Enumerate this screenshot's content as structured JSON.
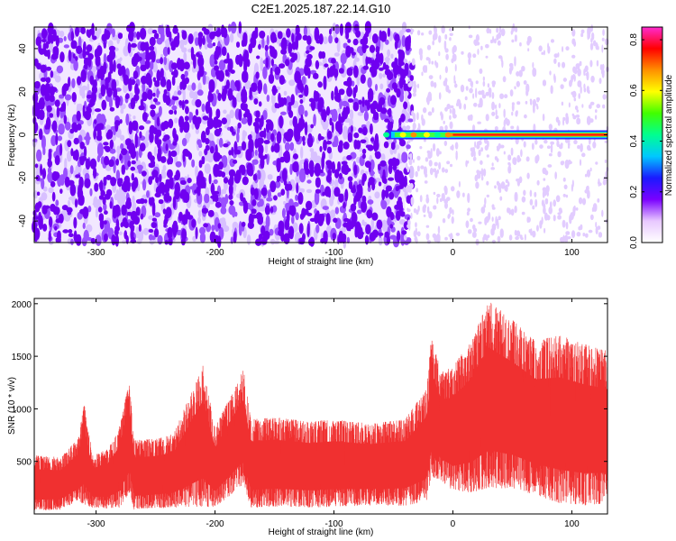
{
  "title": "C2E1.2025.187.22.14.G10",
  "chart_data": [
    {
      "type": "heatmap",
      "xlabel": "Height of straight line (km)",
      "ylabel": "Frequency (Hz)",
      "xlim": [
        -352,
        130
      ],
      "ylim": [
        -50,
        50
      ],
      "xticks": [
        -300,
        -200,
        -100,
        0,
        100
      ],
      "yticks": [
        -40,
        -20,
        0,
        20,
        40
      ],
      "colorbar": {
        "label": "Normalized spectral amplitude",
        "range": [
          0,
          0.85
        ],
        "ticks": [
          0.0,
          0.2,
          0.4,
          0.6,
          0.8
        ],
        "colors": [
          "#ffffff",
          "#e8c8ff",
          "#7a00ff",
          "#1a1aff",
          "#00c8ff",
          "#00ff90",
          "#40ff00",
          "#ffff00",
          "#ff9000",
          "#ff0000",
          "#ff2ad0"
        ]
      },
      "features": [
        {
          "name": "Speckled noise field",
          "x_range": [
            -352,
            -40
          ],
          "y_range": [
            -50,
            50
          ],
          "amplitude": [
            0.02,
            0.12
          ]
        },
        {
          "name": "Sparse noise field",
          "x_range": [
            -40,
            130
          ],
          "y_range": [
            -50,
            50
          ],
          "amplitude": [
            0.0,
            0.06
          ]
        },
        {
          "name": "Carrier line",
          "x_range": [
            -55,
            130
          ],
          "y": 0,
          "amplitude": [
            0.45,
            0.85
          ]
        }
      ]
    },
    {
      "type": "line",
      "color": "#f03030",
      "xlabel": "Height of straight line (km)",
      "ylabel": "SNR (10 * v/v)",
      "xlim": [
        -352,
        130
      ],
      "ylim": [
        0,
        2050
      ],
      "xticks": [
        -300,
        -200,
        -100,
        0,
        100
      ],
      "yticks": [
        500,
        1000,
        1500,
        2000
      ],
      "envelope": [
        {
          "x": -352,
          "low": 30,
          "high": 560
        },
        {
          "x": -330,
          "low": 40,
          "high": 540
        },
        {
          "x": -315,
          "low": 120,
          "high": 720
        },
        {
          "x": -310,
          "low": 90,
          "high": 1050
        },
        {
          "x": -303,
          "low": 60,
          "high": 560
        },
        {
          "x": -290,
          "low": 50,
          "high": 620
        },
        {
          "x": -280,
          "low": 60,
          "high": 850
        },
        {
          "x": -272,
          "low": 200,
          "high": 1270
        },
        {
          "x": -268,
          "low": 40,
          "high": 700
        },
        {
          "x": -250,
          "low": 50,
          "high": 720
        },
        {
          "x": -235,
          "low": 60,
          "high": 760
        },
        {
          "x": -210,
          "low": 70,
          "high": 1420
        },
        {
          "x": -200,
          "low": 60,
          "high": 820
        },
        {
          "x": -176,
          "low": 280,
          "high": 1380
        },
        {
          "x": -170,
          "low": 60,
          "high": 900
        },
        {
          "x": -150,
          "low": 70,
          "high": 920
        },
        {
          "x": -120,
          "low": 60,
          "high": 880
        },
        {
          "x": -100,
          "low": 70,
          "high": 900
        },
        {
          "x": -70,
          "low": 80,
          "high": 860
        },
        {
          "x": -40,
          "low": 80,
          "high": 900
        },
        {
          "x": -22,
          "low": 120,
          "high": 1200
        },
        {
          "x": -18,
          "low": 350,
          "high": 1700
        },
        {
          "x": -10,
          "low": 320,
          "high": 1350
        },
        {
          "x": 0,
          "low": 220,
          "high": 1400
        },
        {
          "x": 15,
          "low": 200,
          "high": 1650
        },
        {
          "x": 30,
          "low": 250,
          "high": 2030
        },
        {
          "x": 50,
          "low": 240,
          "high": 1850
        },
        {
          "x": 70,
          "low": 180,
          "high": 1650
        },
        {
          "x": 90,
          "low": 100,
          "high": 1700
        },
        {
          "x": 110,
          "low": 80,
          "high": 1620
        },
        {
          "x": 130,
          "low": 100,
          "high": 1550
        }
      ]
    }
  ]
}
